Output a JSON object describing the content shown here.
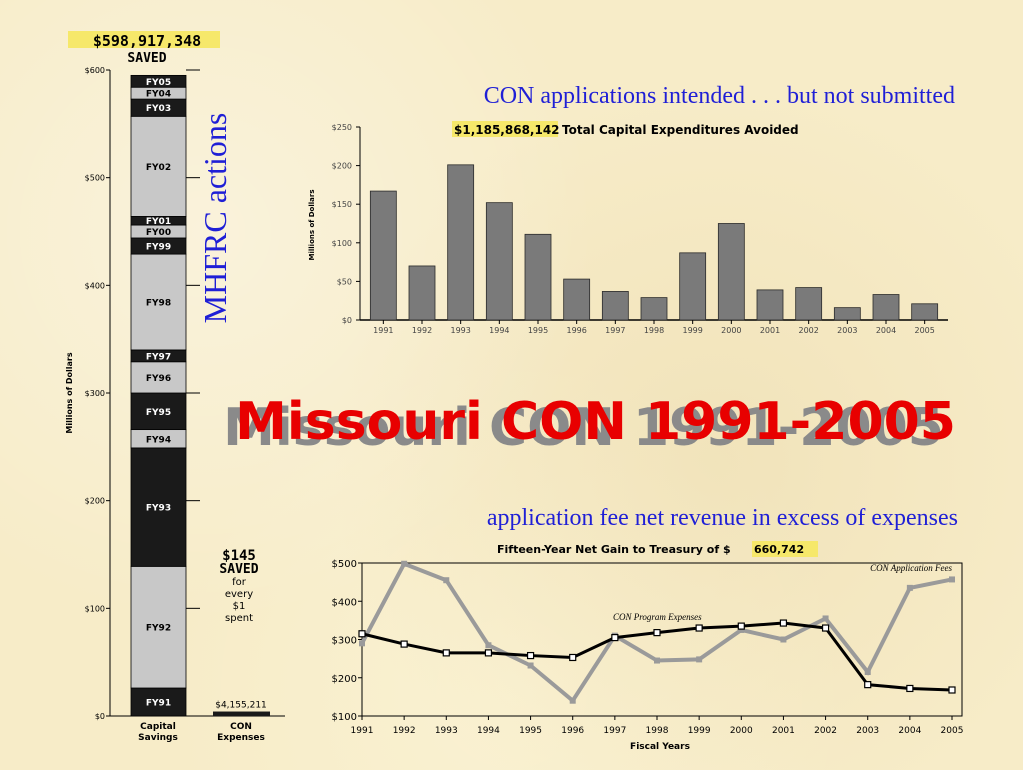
{
  "slide": {
    "title": "Missouri CON 1991-2005",
    "side_label": "MHFRC actions",
    "bar_heading": "CON applications intended . . . but not submitted",
    "line_heading": "application fee net revenue in excess of expenses"
  },
  "chart_data": [
    {
      "type": "bar",
      "subtype": "stacked",
      "title_amount": "$598,917,348",
      "title_word": "SAVED",
      "ylabel": "Millions of Dollars",
      "ylim": [
        0,
        600
      ],
      "yticks": [
        "$0",
        "$100",
        "$200",
        "$300",
        "$400",
        "$500",
        "$600"
      ],
      "categories": [
        "Capital\nSavings",
        "CON\nExpenses"
      ],
      "segments": [
        {
          "label": "FY91",
          "value": 26,
          "color": "#1a1a1a"
        },
        {
          "label": "FY92",
          "value": 113,
          "color": "#c8c8c8"
        },
        {
          "label": "FY93",
          "value": 110,
          "color": "#1a1a1a"
        },
        {
          "label": "FY94",
          "value": 17,
          "color": "#c8c8c8"
        },
        {
          "label": "FY95",
          "value": 34,
          "color": "#1a1a1a"
        },
        {
          "label": "FY96",
          "value": 29,
          "color": "#c8c8c8"
        },
        {
          "label": "FY97",
          "value": 11,
          "color": "#1a1a1a"
        },
        {
          "label": "FY98",
          "value": 89,
          "color": "#c8c8c8"
        },
        {
          "label": "FY99",
          "value": 15,
          "color": "#1a1a1a"
        },
        {
          "label": "FY00",
          "value": 12,
          "color": "#c8c8c8"
        },
        {
          "label": "FY01",
          "value": 8,
          "color": "#1a1a1a"
        },
        {
          "label": "FY02",
          "value": 93,
          "color": "#c8c8c8"
        },
        {
          "label": "FY03",
          "value": 16,
          "color": "#1a1a1a"
        },
        {
          "label": "FY04",
          "value": 11,
          "color": "#c8c8c8"
        },
        {
          "label": "FY05",
          "value": 11,
          "color": "#1a1a1a"
        }
      ],
      "con_expenses_value": 4.155211,
      "con_expenses_label": "$4,155,211",
      "ratio_amount": "$145",
      "ratio_word": "SAVED",
      "ratio_lines": [
        "for",
        "every",
        "$1",
        "spent"
      ]
    },
    {
      "type": "bar",
      "title_amount": "$1,185,868,142",
      "title_text": "Total Capital Expenditures Avoided",
      "ylabel": "Millions of Dollars",
      "ylim": [
        0,
        250
      ],
      "yticks": [
        "$0",
        "$50",
        "$100",
        "$150",
        "$200",
        "$250"
      ],
      "categories": [
        "1991",
        "1992",
        "1993",
        "1994",
        "1995",
        "1996",
        "1997",
        "1998",
        "1999",
        "2000",
        "2001",
        "2002",
        "2003",
        "2004",
        "2005"
      ],
      "values": [
        167,
        70,
        201,
        152,
        111,
        53,
        37,
        29,
        87,
        125,
        39,
        42,
        16,
        33,
        21
      ]
    },
    {
      "type": "line",
      "title_prefix": "Fifteen-Year Net Gain to Treasury of $",
      "title_amount": "660,742",
      "xlabel": "Fiscal Years",
      "ylim": [
        100,
        500
      ],
      "yticks": [
        "$100",
        "$200",
        "$300",
        "$400",
        "$500"
      ],
      "x": [
        "1991",
        "1992",
        "1993",
        "1994",
        "1995",
        "1996",
        "1997",
        "1998",
        "1999",
        "2000",
        "2001",
        "2002",
        "2003",
        "2004",
        "2005"
      ],
      "series": [
        {
          "name": "CON Application Fees",
          "color": "#9a9a9a",
          "values": [
            290,
            498,
            455,
            285,
            232,
            140,
            310,
            245,
            248,
            325,
            300,
            355,
            215,
            435,
            457
          ]
        },
        {
          "name": "CON Program Expenses",
          "color": "#000000",
          "values": [
            315,
            288,
            265,
            265,
            258,
            253,
            305,
            318,
            330,
            335,
            343,
            330,
            182,
            172,
            168
          ]
        }
      ]
    }
  ]
}
